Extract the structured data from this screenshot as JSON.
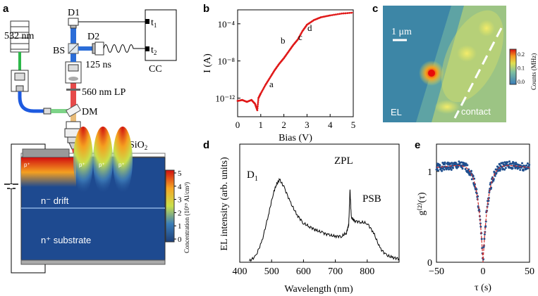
{
  "panels": {
    "a": "a",
    "b": "b",
    "c": "c",
    "d": "d",
    "e": "e"
  },
  "panel_a": {
    "laser": "532 nm",
    "d1": "D1",
    "d2": "D2",
    "bs": "BS",
    "delay": "125 ns",
    "t1": "t",
    "t1_sub": "1",
    "t2": "t",
    "t2_sub": "2",
    "cc": "CC",
    "lp": "560 nm LP",
    "dm": "DM",
    "sio2": "SiO",
    "sio2_sub": "2",
    "p_plus": "p⁺",
    "n_drift": "n⁻ drift",
    "n_substrate": "n⁺ substrate",
    "colorbar_ticks": [
      "5",
      "4",
      "3",
      "2",
      "1",
      "0"
    ],
    "colorbar_label": "Concentration (10¹⁹ Al/cm³)"
  },
  "panel_c": {
    "scale": "1 μm",
    "el": "EL",
    "contact": "contact",
    "colorbar_ticks": [
      "0.2",
      "0.1",
      "0.0"
    ],
    "colorbar_label": "Counts (MHz)"
  },
  "chart_data": [
    {
      "id": "b",
      "type": "line",
      "xlabel": "Bias (V)",
      "ylabel": "I (A)",
      "x_ticks": [
        "0",
        "1",
        "2",
        "3",
        "4",
        "5"
      ],
      "y_ticks": [
        "10⁻¹²",
        "10⁻⁸",
        "10⁻⁴"
      ],
      "xlim": [
        0,
        5
      ],
      "ylim_log10": [
        -14,
        -2.5
      ],
      "annotations": [
        "a",
        "b",
        "c",
        "d"
      ],
      "x": [
        0,
        0.2,
        0.4,
        0.6,
        0.75,
        0.85,
        0.9,
        1.0,
        1.2,
        1.4,
        1.6,
        1.8,
        2.0,
        2.2,
        2.4,
        2.6,
        2.8,
        3.0,
        3.3,
        3.6,
        4.0,
        4.5,
        5.0
      ],
      "log10_I": [
        -12.3,
        -12.2,
        -12.4,
        -12.2,
        -12.6,
        -13.3,
        -12.0,
        -11.5,
        -10.6,
        -9.8,
        -9.0,
        -8.3,
        -7.7,
        -7.0,
        -6.3,
        -5.7,
        -4.8,
        -4.1,
        -3.6,
        -3.3,
        -3.1,
        -2.9,
        -2.8
      ]
    },
    {
      "id": "d",
      "type": "line",
      "xlabel": "Wavelength (nm)",
      "ylabel": "EL intensity (arb. units)",
      "x_ticks": [
        "400",
        "500",
        "600",
        "700",
        "800"
      ],
      "xlim": [
        400,
        900
      ],
      "ylim": [
        0,
        1
      ],
      "annotations": [
        "D",
        "1",
        "ZPL",
        "PSB"
      ],
      "x": [
        430,
        450,
        470,
        490,
        505,
        515,
        525,
        540,
        560,
        580,
        600,
        620,
        640,
        660,
        680,
        700,
        720,
        735,
        742,
        746,
        750,
        760,
        780,
        800,
        820,
        840,
        860,
        880,
        900
      ],
      "y": [
        0.01,
        0.05,
        0.18,
        0.4,
        0.58,
        0.66,
        0.7,
        0.63,
        0.5,
        0.4,
        0.33,
        0.3,
        0.27,
        0.25,
        0.23,
        0.22,
        0.22,
        0.25,
        0.32,
        0.61,
        0.38,
        0.35,
        0.34,
        0.33,
        0.25,
        0.12,
        0.06,
        0.04,
        0.03
      ]
    },
    {
      "id": "e",
      "type": "scatter",
      "xlabel": "τ (s)",
      "ylabel": "g⁽²⁾(τ)",
      "x_ticks": [
        "−50",
        "0",
        "50"
      ],
      "y_ticks": [
        "0",
        "1"
      ],
      "xlim": [
        -50,
        50
      ],
      "ylim": [
        0,
        1.3
      ],
      "fit_dip_width": 6,
      "fit_baseline": 1.0,
      "fit_bunching_amp": 0.15
    }
  ]
}
